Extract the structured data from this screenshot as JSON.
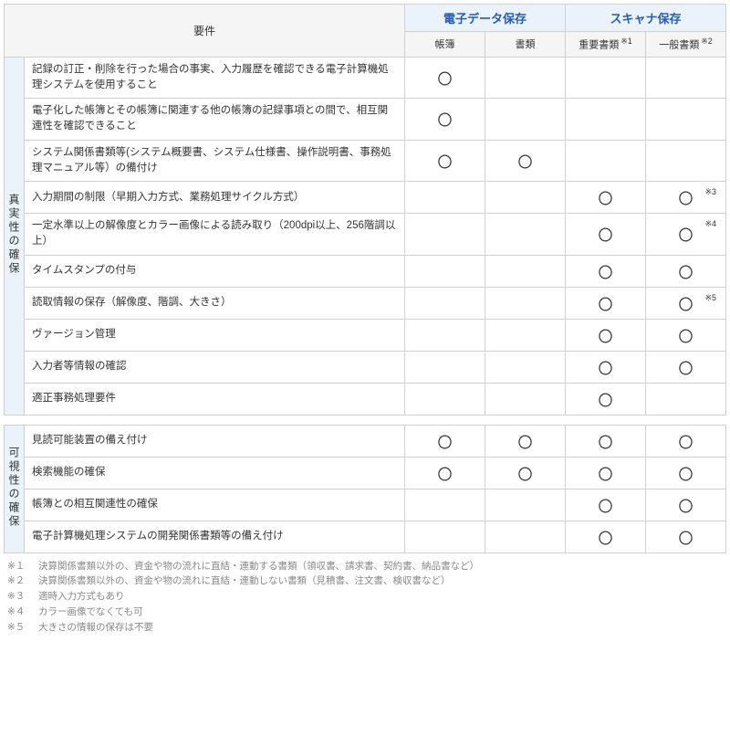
{
  "headers": {
    "requirement": "要件",
    "group1": "電子データ保存",
    "group2": "スキャナ保存",
    "sub1": "帳簿",
    "sub2": "書類",
    "sub3": "重要書類",
    "sub3_note": "※1",
    "sub4": "一般書類",
    "sub4_note": "※2"
  },
  "mark": "〇",
  "categories": [
    {
      "label": "真実性の確保",
      "rows": [
        {
          "req": "記録の訂正・削除を行った場合の事実、入力履歴を確認できる電子計算機処理システムを使用すること",
          "c": [
            "〇",
            "",
            "",
            ""
          ]
        },
        {
          "req": "電子化した帳簿とその帳簿に関連する他の帳簿の記録事項との間で、相互関連性を確認できること",
          "c": [
            "〇",
            "",
            "",
            ""
          ]
        },
        {
          "req": "システム関係書類等(システム概要書、システム仕様書、操作説明書、事務処理マニュアル等）の備付け",
          "c": [
            "〇",
            "〇",
            "",
            ""
          ]
        },
        {
          "req": "入力期間の制限（早期入力方式、業務処理サイクル方式）",
          "c": [
            "",
            "",
            "〇",
            "〇"
          ],
          "notes": [
            "",
            "",
            "",
            "※3"
          ]
        },
        {
          "req": "一定水準以上の解像度とカラー画像による読み取り（200dpi以上、256階調以上）",
          "c": [
            "",
            "",
            "〇",
            "〇"
          ],
          "notes": [
            "",
            "",
            "",
            "※4"
          ]
        },
        {
          "req": "タイムスタンプの付与",
          "c": [
            "",
            "",
            "〇",
            "〇"
          ]
        },
        {
          "req": "読取情報の保存（解像度、階調、大きさ）",
          "c": [
            "",
            "",
            "〇",
            "〇"
          ],
          "notes": [
            "",
            "",
            "",
            "※5"
          ]
        },
        {
          "req": "ヴァージョン管理",
          "c": [
            "",
            "",
            "〇",
            "〇"
          ]
        },
        {
          "req": "入力者等情報の確認",
          "c": [
            "",
            "",
            "〇",
            "〇"
          ]
        },
        {
          "req": "適正事務処理要件",
          "c": [
            "",
            "",
            "〇",
            ""
          ]
        }
      ]
    },
    {
      "label": "可視性の確保",
      "rows": [
        {
          "req": "見読可能装置の備え付け",
          "c": [
            "〇",
            "〇",
            "〇",
            "〇"
          ]
        },
        {
          "req": "検索機能の確保",
          "c": [
            "〇",
            "〇",
            "〇",
            "〇"
          ]
        },
        {
          "req": "帳簿との相互関連性の確保",
          "c": [
            "",
            "",
            "〇",
            "〇"
          ]
        },
        {
          "req": "電子計算機処理システムの開発関係書類等の備え付け",
          "c": [
            "",
            "",
            "〇",
            "〇"
          ]
        }
      ]
    }
  ],
  "footnotes": [
    {
      "key": "※１",
      "text": "決算関係書類以外の、資金や物の流れに直結・連動する書類（領収書、請求書、契約書、納品書など）"
    },
    {
      "key": "※２",
      "text": "決算関係書類以外の、資金や物の流れに直結・連動しない書類（見積書、注文書、検収書など）"
    },
    {
      "key": "※３",
      "text": "適時入力方式もあり"
    },
    {
      "key": "※４",
      "text": "カラー画像でなくても可"
    },
    {
      "key": "※５",
      "text": "大きさの情報の保存は不要"
    }
  ]
}
